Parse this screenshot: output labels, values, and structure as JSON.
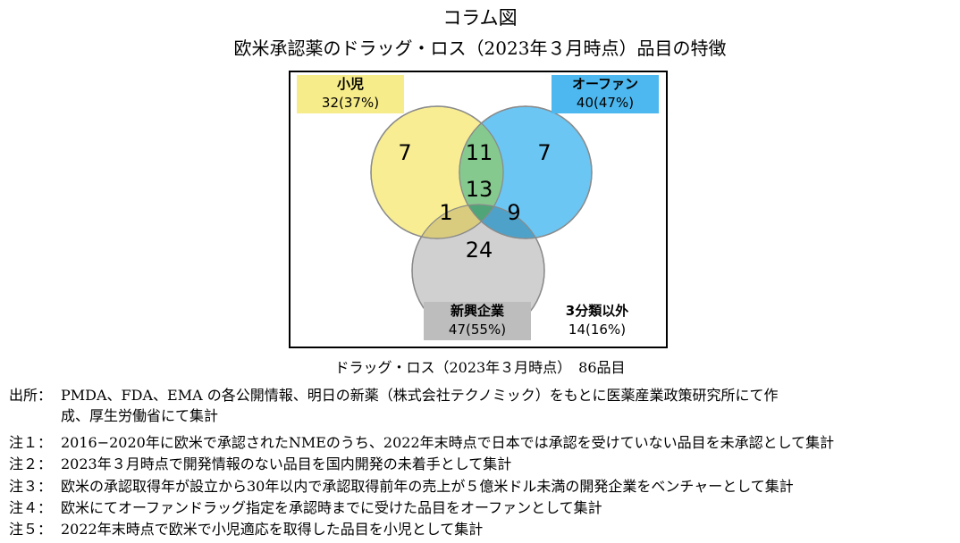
{
  "figure": {
    "label": "コラム図",
    "title": "欧米承認薬のドラッグ・ロス（2023年３月時点）品目の特徴"
  },
  "venn": {
    "sets": [
      {
        "name": "小児",
        "count": "32(37%)",
        "color": "#f7ec8a"
      },
      {
        "name": "オーファン",
        "count": "40(47%)",
        "color": "#4db8ef"
      },
      {
        "name": "新興企業",
        "count": "47(55%)",
        "color": "#bdbdbd"
      }
    ],
    "other": {
      "name": "3分類以外",
      "count": "14(16%)"
    },
    "regions": {
      "pediatric_only": "7",
      "orphan_only": "7",
      "startup_only": "24",
      "pediatric_orphan": "11",
      "pediatric_startup": "1",
      "orphan_startup": "9",
      "all_three": "13"
    }
  },
  "caption": "ドラッグ・ロス（2023年３月時点）　86品目",
  "notes": {
    "source_label": "出所：",
    "source_line1": "PMDA、FDA、EMA の各公開情報、明日の新薬（株式会社テクノミック）をもとに医薬産業政策研究所にて作",
    "source_line2": "成、厚生労働省にて集計",
    "note1_label": "注１：",
    "note1": "2016−2020年に欧米で承認されたNMEのうち、2022年末時点で日本では承認を受けていない品目を未承認として集計",
    "note2_label": "注２：",
    "note2": "2023年３月時点で開発情報のない品目を国内開発の未着手として集計",
    "note3_label": "注３：",
    "note3": "欧米の承認取得年が設立から30年以内で承認取得前年の売上が５億米ドル未満の開発企業をベンチャーとして集計",
    "note4_label": "注４：",
    "note4": "欧米にてオーファンドラッグ指定を承認時までに受けた品目をオーファンとして集計",
    "note5_label": "注５：",
    "note5": "2022年末時点で欧米で小児適応を取得した品目を小児として集計"
  }
}
